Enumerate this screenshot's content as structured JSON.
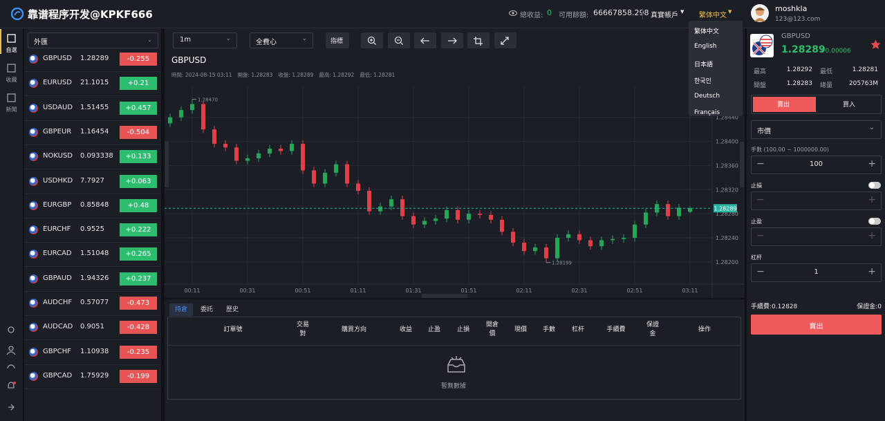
{
  "header": {
    "logo": "靠谱程序开发@KPKF666",
    "total_profit_label": "總收益:",
    "total_profit": "0",
    "balance_label": "可用餘額:",
    "balance": "66667858.298",
    "account": "真實帳戶",
    "language": "繁体中文",
    "username": "moshkla",
    "email": "123@123.com"
  },
  "language_menu": [
    "繁体中文",
    "English",
    "日本語",
    "한국인",
    "Deutsch",
    "Français"
  ],
  "sidebar": [
    "自選",
    "收藏",
    "新聞"
  ],
  "watchlist": {
    "category": "外匯",
    "rows": [
      [
        "GBPUSD",
        "1.28289",
        "-0.255"
      ],
      [
        "EURUSD",
        "21.1015",
        "+0.21"
      ],
      [
        "USDAUD",
        "1.51455",
        "+0.457"
      ],
      [
        "GBPEUR",
        "1.16454",
        "-0.504"
      ],
      [
        "NOKUSD",
        "0.093338",
        "+0.133"
      ],
      [
        "USDHKD",
        "7.7927",
        "+0.063"
      ],
      [
        "EURGBP",
        "0.85848",
        "+0.48"
      ],
      [
        "EURCHF",
        "0.9525",
        "+0.222"
      ],
      [
        "EURCAD",
        "1.51048",
        "+0.265"
      ],
      [
        "GBPAUD",
        "1.94326",
        "+0.237"
      ],
      [
        "AUDCHF",
        "0.57077",
        "-0.473"
      ],
      [
        "AUDCAD",
        "0.9051",
        "-0.428"
      ],
      [
        "GBPCHF",
        "1.10938",
        "-0.235"
      ],
      [
        "GBPCAD",
        "1.75929",
        "-0.199"
      ]
    ]
  },
  "toolbar": {
    "interval": "1m",
    "mode": "全費心",
    "indicator": "指標"
  },
  "chart_data": {
    "type": "candlestick",
    "title": "GBPUSD",
    "info": [
      "時間: 2024-08-15 03:11",
      "開盤: 1.28283",
      "收盤: 1.28289",
      "最高: 1.28292",
      "最低: 1.28281"
    ],
    "up_color": "#26a65b",
    "down_color": "#e0404a",
    "grid": true,
    "x": [
      "00:03",
      "00:07",
      "00:11",
      "00:15",
      "00:19",
      "00:23",
      "00:27",
      "00:31",
      "00:35",
      "00:39",
      "00:43",
      "00:47",
      "00:51",
      "00:55",
      "00:59",
      "01:03",
      "01:07",
      "01:11",
      "01:15",
      "01:19",
      "01:23",
      "01:27",
      "01:31",
      "01:35",
      "01:39",
      "01:43",
      "01:47",
      "01:51",
      "01:55",
      "01:59",
      "02:03",
      "02:07",
      "02:11",
      "02:15",
      "02:19",
      "02:23",
      "02:27",
      "02:31",
      "02:35",
      "02:39",
      "02:43",
      "02:47",
      "02:51",
      "02:55",
      "02:59",
      "03:03",
      "03:07",
      "03:11"
    ],
    "candles": [
      [
        1.2843,
        1.28446,
        1.28424,
        1.2844
      ],
      [
        1.2844,
        1.28458,
        1.28434,
        1.28452
      ],
      [
        1.28452,
        1.2847,
        1.28446,
        1.28462
      ],
      [
        1.28462,
        1.28466,
        1.28414,
        1.2842
      ],
      [
        1.2842,
        1.28426,
        1.2839,
        1.28396
      ],
      [
        1.28396,
        1.28402,
        1.28384,
        1.2839
      ],
      [
        1.2839,
        1.28396,
        1.28362,
        1.28368
      ],
      [
        1.28368,
        1.28378,
        1.28362,
        1.28372
      ],
      [
        1.28372,
        1.28386,
        1.28366,
        1.2838
      ],
      [
        1.2838,
        1.28394,
        1.28374,
        1.28388
      ],
      [
        1.28388,
        1.28394,
        1.28378,
        1.28384
      ],
      [
        1.28384,
        1.28402,
        1.28378,
        1.28396
      ],
      [
        1.28396,
        1.28402,
        1.28346,
        1.28352
      ],
      [
        1.28352,
        1.28358,
        1.28324,
        1.2833
      ],
      [
        1.2833,
        1.28354,
        1.28324,
        1.28348
      ],
      [
        1.28348,
        1.28368,
        1.28342,
        1.28362
      ],
      [
        1.28362,
        1.28368,
        1.28324,
        1.2833
      ],
      [
        1.2833,
        1.28336,
        1.28312,
        1.28318
      ],
      [
        1.28318,
        1.28324,
        1.28278,
        1.28284
      ],
      [
        1.28284,
        1.28298,
        1.28278,
        1.28292
      ],
      [
        1.28292,
        1.2831,
        1.28286,
        1.28304
      ],
      [
        1.28304,
        1.2831,
        1.2827,
        1.28276
      ],
      [
        1.28276,
        1.28282,
        1.28256,
        1.28262
      ],
      [
        1.28262,
        1.28274,
        1.28256,
        1.28268
      ],
      [
        1.28268,
        1.28278,
        1.28262,
        1.28272
      ],
      [
        1.28272,
        1.28292,
        1.28266,
        1.28286
      ],
      [
        1.28286,
        1.28292,
        1.28264,
        1.2827
      ],
      [
        1.2827,
        1.28286,
        1.28264,
        1.2828
      ],
      [
        1.2828,
        1.28286,
        1.28272,
        1.28278
      ],
      [
        1.28278,
        1.28284,
        1.28264,
        1.2827
      ],
      [
        1.2827,
        1.28276,
        1.28244,
        1.2825
      ],
      [
        1.2825,
        1.28256,
        1.28226,
        1.28232
      ],
      [
        1.28232,
        1.28238,
        1.28212,
        1.28218
      ],
      [
        1.28218,
        1.2823,
        1.28212,
        1.28224
      ],
      [
        1.28224,
        1.2823,
        1.28199,
        1.28206
      ],
      [
        1.28206,
        1.28246,
        1.282,
        1.2824
      ],
      [
        1.2824,
        1.28252,
        1.28234,
        1.28246
      ],
      [
        1.28246,
        1.28252,
        1.2823,
        1.28236
      ],
      [
        1.28236,
        1.28242,
        1.2822,
        1.28226
      ],
      [
        1.28226,
        1.28242,
        1.2822,
        1.28236
      ],
      [
        1.28236,
        1.28244,
        1.2823,
        1.28238
      ],
      [
        1.28238,
        1.28246,
        1.28232,
        1.2824
      ],
      [
        1.2824,
        1.28268,
        1.28234,
        1.28262
      ],
      [
        1.28262,
        1.28288,
        1.28256,
        1.28282
      ],
      [
        1.28282,
        1.28302,
        1.28276,
        1.28296
      ],
      [
        1.28296,
        1.28302,
        1.2827,
        1.28276
      ],
      [
        1.28276,
        1.28296,
        1.2827,
        1.2829
      ],
      [
        1.28283,
        1.28292,
        1.28281,
        1.28289
      ]
    ],
    "ylim": [
      1.2817,
      1.2852
    ],
    "yticks": [
      {
        "value": 1.282,
        "label": "1.28200"
      },
      {
        "value": 1.2824,
        "label": "1.28240"
      },
      {
        "value": 1.2828,
        "label": "1.28280"
      },
      {
        "value": 1.2832,
        "label": "1.28320"
      },
      {
        "value": 1.2836,
        "label": "1.28360"
      },
      {
        "value": 1.284,
        "label": "1.28400"
      },
      {
        "value": 1.2844,
        "label": "1.28440"
      }
    ],
    "xticks": [
      "00:11",
      "00:31",
      "00:51",
      "01:11",
      "01:31",
      "01:51",
      "02:11",
      "02:31",
      "02:51",
      "03:11"
    ],
    "high_marker": {
      "value": 1.2847,
      "label": "1.28470"
    },
    "low_marker": 1.28199,
    "last_price": 1.28289
  },
  "orders": {
    "tabs": [
      "持倉",
      "委託",
      "歷史"
    ],
    "columns": [
      "訂單號",
      "交易對",
      "購買方向",
      "收益",
      "止盈",
      "止損",
      "開倉價",
      "現價",
      "手數",
      "杠杆",
      "手續費",
      "保證金",
      "操作"
    ],
    "empty": "暫無數據"
  },
  "trade": {
    "symbol": "GBPUSD",
    "price": "1.28289",
    "change": "+0.00006",
    "stats": [
      [
        "最高",
        "1.28292"
      ],
      [
        "最低",
        "1.28281"
      ],
      [
        "開盤",
        "1.28283"
      ],
      [
        "總量",
        "205763M"
      ]
    ],
    "sides": [
      "賣出",
      "買入"
    ],
    "order_type": "市價",
    "lots_label": "手數 (100.00 ~ 1000000.00)",
    "lots": "100",
    "stop_loss": "止損",
    "take_profit": "止盈",
    "leverage_label": "杠杆",
    "leverage": "1",
    "fee": "手續費:0.12828",
    "margin": "保證金:0",
    "submit": "賣出"
  }
}
